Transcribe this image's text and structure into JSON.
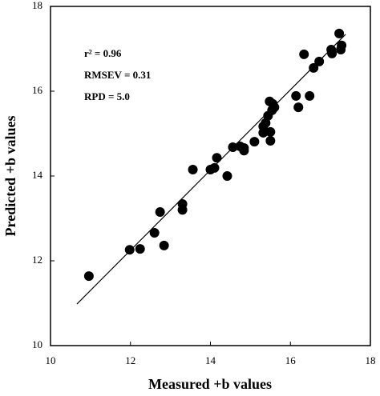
{
  "chart_data": {
    "type": "scatter",
    "xlabel": "Measured +b values",
    "ylabel": "Predicted +b values",
    "annotations": [
      "r² = 0.96",
      "RMSEV = 0.31",
      "RPD = 5.0"
    ],
    "x": [
      10.96,
      11.98,
      12.24,
      12.6,
      12.74,
      12.84,
      13.3,
      13.3,
      13.56,
      14.0,
      14.1,
      14.16,
      14.42,
      14.56,
      14.74,
      14.84,
      14.84,
      15.1,
      15.32,
      15.32,
      15.38,
      15.44,
      15.48,
      15.5,
      15.5,
      15.54,
      15.56,
      15.6,
      16.14,
      16.2,
      16.34,
      16.48,
      16.58,
      16.72,
      17.02,
      17.04,
      17.26,
      17.22,
      17.28
    ],
    "values": [
      11.64,
      12.26,
      12.28,
      12.66,
      13.15,
      12.36,
      13.2,
      13.34,
      14.15,
      14.15,
      14.19,
      14.43,
      14.0,
      14.68,
      14.7,
      14.66,
      14.6,
      14.81,
      15.02,
      15.17,
      15.25,
      15.42,
      15.76,
      14.83,
      15.04,
      15.55,
      15.7,
      15.62,
      15.89,
      15.62,
      16.87,
      15.89,
      16.55,
      16.7,
      16.98,
      16.89,
      16.98,
      17.36,
      17.08
    ],
    "color": "#000000",
    "fit_line": {
      "x": [
        10.66,
        17.38
      ],
      "values": [
        10.98,
        17.34
      ]
    },
    "xlim": [
      10,
      18
    ],
    "ylim": [
      10,
      18
    ],
    "xticks": [
      10,
      12,
      14,
      16,
      18
    ],
    "yticks": [
      10,
      12,
      14,
      16,
      18
    ]
  }
}
